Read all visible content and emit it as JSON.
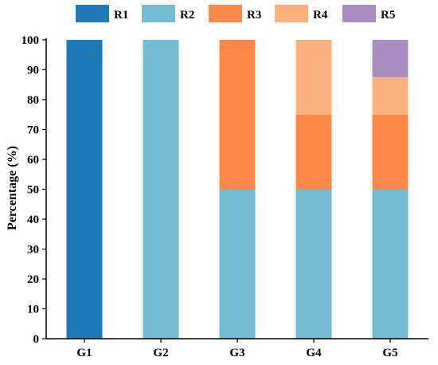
{
  "chart_data": {
    "type": "bar",
    "stacked": true,
    "title": "",
    "xlabel": "",
    "ylabel": "Percentage (%)",
    "ylim": [
      0,
      100
    ],
    "yticks": [
      0,
      10,
      20,
      30,
      40,
      50,
      60,
      70,
      80,
      90,
      100
    ],
    "grid": false,
    "legend_position": "top",
    "categories": [
      "G1",
      "G2",
      "G3",
      "G4",
      "G5"
    ],
    "series": [
      {
        "name": "R1",
        "color": "#1f7bb8",
        "values": [
          100,
          0,
          0,
          0,
          0
        ]
      },
      {
        "name": "R2",
        "color": "#74bcd3",
        "values": [
          0,
          100,
          50,
          50,
          50
        ]
      },
      {
        "name": "R3",
        "color": "#fe8847",
        "values": [
          0,
          0,
          50,
          25,
          25
        ]
      },
      {
        "name": "R4",
        "color": "#fbb07d",
        "values": [
          0,
          0,
          0,
          25,
          12.5
        ]
      },
      {
        "name": "R5",
        "color": "#a98cc2",
        "values": [
          0,
          0,
          0,
          0,
          12.5
        ]
      }
    ]
  }
}
